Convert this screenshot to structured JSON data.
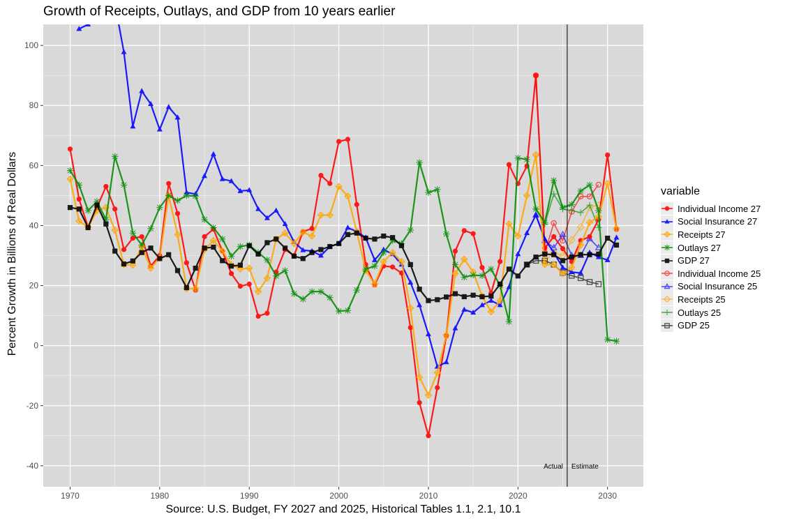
{
  "chart_data": {
    "type": "line",
    "title": "Growth of Receipts, Outlays, and GDP from 10 years earlier",
    "xlabel": "Source: U.S. Budget, FY 2027 and 2025, Historical Tables 1.1, 2.1, 10.1",
    "ylabel": "Percent Growth in Billions of Real Dollars",
    "xlim": [
      1967,
      2034
    ],
    "ylim": [
      -47,
      107
    ],
    "x_ticks": [
      1970,
      1980,
      1990,
      2000,
      2010,
      2020,
      2030
    ],
    "y_ticks": [
      -40,
      -20,
      0,
      20,
      40,
      60,
      80,
      100
    ],
    "grid": true,
    "background": "#d9d9d9",
    "legend_title": "variable",
    "legend_position": "right",
    "vline": {
      "x": 2025.5,
      "left_label": "Actual",
      "right_label": "Estimate"
    },
    "series": [
      {
        "name": "Individual Income 27",
        "color": "#ff0000",
        "marker": "circle",
        "start": 1970,
        "values": [
          65.5,
          48.8,
          39.5,
          46,
          53,
          45.5,
          32,
          35.8,
          36.3,
          26.5,
          30,
          54,
          44,
          27.6,
          18.5,
          36.3,
          38.8,
          31.5,
          24,
          19.8,
          20.5,
          9.8,
          10.8,
          24.5,
          32,
          30,
          38,
          39,
          56.7,
          54,
          68,
          68.7,
          47,
          27,
          20.2,
          26.5,
          26.2,
          24.2,
          6,
          -19,
          -30,
          -14,
          3.2,
          31.5,
          38.3,
          37.3,
          26,
          17.5,
          28,
          60.3,
          54,
          59.8,
          90,
          32.5,
          36.3,
          32.3,
          28,
          35,
          36.3,
          42,
          63.5,
          38.7
        ]
      },
      {
        "name": "Social Insurance 27",
        "color": "#0000ff",
        "marker": "triangle",
        "start": 1970,
        "values": [
          null,
          105.5,
          107,
          115,
          118,
          114,
          97.8,
          73,
          84.8,
          80.5,
          72,
          79.5,
          76,
          51,
          50.5,
          56.5,
          63.8,
          55.5,
          54.8,
          51.5,
          51.8,
          45.5,
          42.5,
          45,
          40.5,
          34.5,
          31.8,
          31.5,
          30,
          33,
          34,
          39.3,
          38,
          36,
          28.5,
          32,
          30.5,
          27,
          21,
          13.5,
          3.8,
          -7,
          -5.5,
          5.8,
          12,
          11,
          13.5,
          15,
          13.5,
          19.5,
          30.5,
          37.5,
          43.5,
          35.5,
          31,
          26,
          24.5,
          24.2,
          31,
          29.5,
          28.5,
          36
        ]
      },
      {
        "name": "Receipts 27",
        "color": "#ffa500",
        "marker": "diamond",
        "start": 1970,
        "values": [
          55.5,
          41.5,
          39.5,
          45,
          46,
          38.5,
          27,
          26.8,
          33,
          25.8,
          29.2,
          50,
          37,
          19,
          19,
          32,
          35,
          31.5,
          27,
          25.5,
          25.8,
          18,
          22.5,
          35.5,
          37.5,
          34,
          37.8,
          36.5,
          43.5,
          43.5,
          53,
          49.8,
          38,
          25,
          20.5,
          28,
          31,
          28,
          12.5,
          -10.5,
          -16.5,
          -9,
          3.5,
          24,
          28.8,
          24.5,
          16.5,
          11.3,
          15,
          40.5,
          36.5,
          50,
          63.5,
          27,
          27,
          24,
          26,
          33.5,
          41,
          43,
          54,
          39
        ]
      },
      {
        "name": "Outlays 27",
        "color": "#008b00",
        "marker": "asterisk",
        "start": 1970,
        "values": [
          58.3,
          53.5,
          45,
          48,
          42,
          63,
          53.5,
          37.5,
          33.5,
          39,
          46,
          50,
          48.3,
          50,
          49.8,
          42,
          39.3,
          35.5,
          29.8,
          33,
          33.5,
          31,
          28.5,
          23.2,
          25,
          17.3,
          15.5,
          18,
          18,
          16,
          11.5,
          11.7,
          18.5,
          25.5,
          26.5,
          31,
          35,
          34,
          38.5,
          61,
          51,
          52,
          37.2,
          27,
          22.8,
          23.5,
          23.3,
          25.5,
          20,
          8,
          62.5,
          62,
          45.5,
          41,
          55,
          46,
          47,
          51.5,
          53.5,
          45,
          2,
          1.5
        ]
      },
      {
        "name": "GDP 27",
        "color": "#000000",
        "marker": "square",
        "start": 1970,
        "values": [
          46,
          45.5,
          39.3,
          46.8,
          40.5,
          31.5,
          27.2,
          28.2,
          31,
          32.5,
          29,
          30.3,
          25,
          19.3,
          25.8,
          32.5,
          32.8,
          28.3,
          26.5,
          26.8,
          33.3,
          30.5,
          34.3,
          35.5,
          32.5,
          29.8,
          29,
          31,
          32,
          33,
          34,
          37,
          37.5,
          35.8,
          35.5,
          36.5,
          36,
          33.3,
          27,
          18.8,
          15,
          15.3,
          16.2,
          17.3,
          16.3,
          16.8,
          16.3,
          16.5,
          20.5,
          25.5,
          23.2,
          27,
          29.5,
          30.5,
          30.3,
          28.3,
          29.5,
          30.3,
          30.3,
          30.5,
          35.8,
          33.5
        ]
      },
      {
        "name": "Individual Income 25",
        "color": "#ff0000",
        "marker": "open-circle",
        "start": 2022,
        "values": [
          90,
          31,
          40.8,
          35,
          44.6,
          49.7,
          49.7,
          53.6
        ]
      },
      {
        "name": "Social Insurance 25",
        "color": "#0000ff",
        "marker": "open-triangle",
        "start": 2022,
        "values": [
          43.5,
          35,
          32.6,
          37,
          30,
          30,
          35.6,
          32.6
        ]
      },
      {
        "name": "Receipts 25",
        "color": "#ffa500",
        "marker": "open-diamond",
        "start": 2022,
        "values": [
          63.5,
          28,
          31,
          30,
          35.2,
          39.5,
          46,
          46.8
        ]
      },
      {
        "name": "Outlays 25",
        "color": "#008b00",
        "marker": "plus",
        "start": 2022,
        "values": [
          45.5,
          40.5,
          50.5,
          45.5,
          45,
          44.3,
          46.8,
          39.3
        ]
      },
      {
        "name": "GDP 25",
        "color": "#000000",
        "marker": "open-square",
        "start": 2021,
        "values": [
          27,
          28.3,
          28.3,
          27,
          24.3,
          23.3,
          22.5,
          21.2,
          20.5
        ]
      }
    ]
  }
}
